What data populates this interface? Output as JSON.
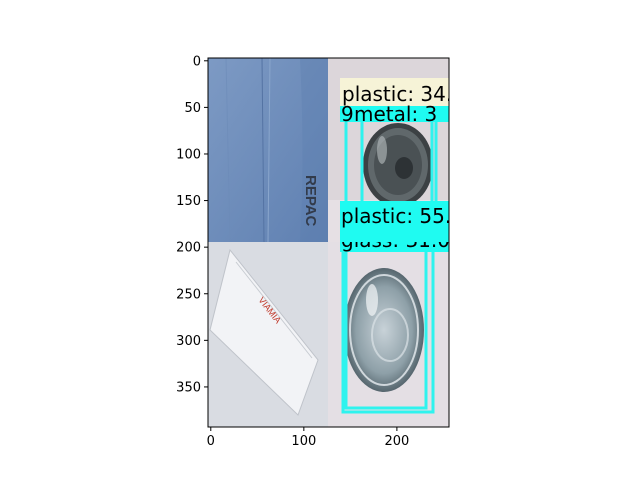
{
  "figure": {
    "x_ticks": [
      "0",
      "100",
      "200"
    ],
    "y_ticks": [
      "0",
      "50",
      "100",
      "150",
      "200",
      "250",
      "300",
      "350"
    ],
    "x_range": [
      -3,
      256
    ],
    "y_range": [
      393,
      -3
    ]
  },
  "image_tiles": [
    {
      "name": "cardboard-photo",
      "content": "blue cardboard sheet",
      "text": "REPAC",
      "color": "#6f8fbd"
    },
    {
      "name": "can-photo",
      "content": "metal can lid",
      "color": "#d9d4d8"
    },
    {
      "name": "paper-photo",
      "content": "white paper envelope",
      "text": "VIAMIA",
      "color": "#d8dbe0"
    },
    {
      "name": "jar-photo",
      "content": "glass bowl",
      "color": "#e3dfe3"
    }
  ],
  "detections": [
    {
      "label": "plastic: 34.",
      "bg_color": "#f6f3d7"
    },
    {
      "label": "metal: 3",
      "prefix": "9",
      "bg_color": "#1ffbf1"
    },
    {
      "label": "plastic: 55.",
      "bg_color": "#1ffbf1"
    },
    {
      "label": "glass: 31.0",
      "bg_color": "#1ffbf1"
    }
  ],
  "colors": {
    "box": "#2ef3ee",
    "axis": "#000000"
  }
}
